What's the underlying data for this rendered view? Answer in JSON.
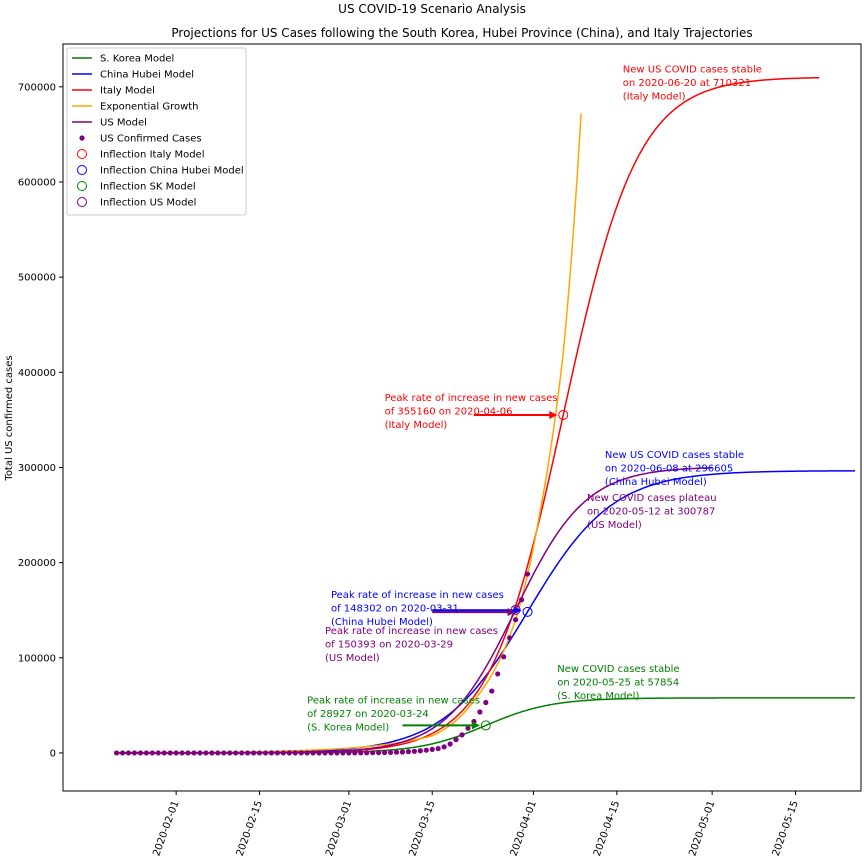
{
  "chart_data": {
    "type": "line",
    "title": "US COVID-19 Scenario Analysis",
    "subtitle": "Projections for US Cases following the South Korea, Hubei Province (China), and Italy Trajectories",
    "xlabel": "",
    "ylabel": "Total US confirmed cases",
    "xlim": [
      "2020-01-13",
      "2020-05-26"
    ],
    "ylim": [
      -40000,
      745000
    ],
    "x_ticks": [
      "2020-02-01",
      "2020-02-15",
      "2020-03-01",
      "2020-03-15",
      "2020-04-01",
      "2020-04-15",
      "2020-05-01",
      "2020-05-15"
    ],
    "y_ticks": [
      0,
      100000,
      200000,
      300000,
      400000,
      500000,
      600000,
      700000
    ],
    "grid": false,
    "legend_position": "top-left",
    "series": [
      {
        "name": "S. Korea Model",
        "kind": "logistic",
        "color": "#008000",
        "midpoint": "2020-03-24",
        "capacity": 57854,
        "rate": 0.18,
        "start": "2020-01-22",
        "end": "2020-05-25"
      },
      {
        "name": "China Hubei Model",
        "kind": "logistic",
        "color": "#0000ff",
        "midpoint": "2020-03-31",
        "capacity": 296605,
        "rate": 0.14,
        "start": "2020-01-22",
        "end": "2020-05-25"
      },
      {
        "name": "Italy Model",
        "kind": "logistic",
        "color": "#ff0000",
        "midpoint": "2020-04-06",
        "capacity": 710321,
        "rate": 0.16,
        "start": "2020-01-22",
        "end": "2020-05-19"
      },
      {
        "name": "Exponential Growth",
        "kind": "exponential",
        "color": "#ffa500",
        "start": "2020-01-22",
        "end": "2020-04-09",
        "points": [
          [
            "2020-01-22",
            0
          ],
          [
            "2020-03-01",
            5000
          ],
          [
            "2020-03-15",
            18000
          ],
          [
            "2020-03-22",
            55000
          ],
          [
            "2020-03-29",
            140000
          ],
          [
            "2020-04-02",
            250000
          ],
          [
            "2020-04-06",
            420000
          ],
          [
            "2020-04-09",
            672000
          ]
        ]
      },
      {
        "name": "US Model",
        "kind": "logistic",
        "color": "#800080",
        "midpoint": "2020-03-29",
        "capacity": 300787,
        "rate": 0.17,
        "start": "2020-01-22",
        "end": "2020-05-01"
      },
      {
        "name": "US Confirmed Cases",
        "kind": "scatter",
        "color": "#800080",
        "points": [
          [
            "2020-01-22",
            1
          ],
          [
            "2020-02-01",
            8
          ],
          [
            "2020-02-15",
            15
          ],
          [
            "2020-02-29",
            70
          ],
          [
            "2020-03-04",
            150
          ],
          [
            "2020-03-08",
            550
          ],
          [
            "2020-03-10",
            1000
          ],
          [
            "2020-03-12",
            1700
          ],
          [
            "2020-03-14",
            2900
          ],
          [
            "2020-03-16",
            4600
          ],
          [
            "2020-03-17",
            6400
          ],
          [
            "2020-03-18",
            9400
          ],
          [
            "2020-03-19",
            14000
          ],
          [
            "2020-03-20",
            19000
          ],
          [
            "2020-03-21",
            26000
          ],
          [
            "2020-03-22",
            33000
          ],
          [
            "2020-03-23",
            43000
          ],
          [
            "2020-03-24",
            53000
          ],
          [
            "2020-03-25",
            65000
          ],
          [
            "2020-03-26",
            83000
          ],
          [
            "2020-03-27",
            101000
          ],
          [
            "2020-03-28",
            121000
          ],
          [
            "2020-03-29",
            140000
          ],
          [
            "2020-03-30",
            161000
          ],
          [
            "2020-03-31",
            188000
          ]
        ]
      }
    ],
    "inflections": [
      {
        "name": "Inflection Italy Model",
        "color": "#ff0000",
        "x": "2020-04-06",
        "y": 355160
      },
      {
        "name": "Inflection China Hubei Model",
        "color": "#0000ff",
        "x": "2020-03-31",
        "y": 148302
      },
      {
        "name": "Inflection SK Model",
        "color": "#008000",
        "x": "2020-03-24",
        "y": 28927
      },
      {
        "name": "Inflection US Model",
        "color": "#800080",
        "x": "2020-03-29",
        "y": 150393
      }
    ],
    "annotations": [
      {
        "id": "italy-peak",
        "color": "#ff0000",
        "lines": [
          "Peak rate of increase in new cases",
          "of 355160 on 2020-04-06",
          "(Italy Model)"
        ],
        "x": "2020-03-07",
        "y": 370000,
        "arrow_from": [
          "2020-03-22",
          355160
        ],
        "arrow_to": [
          "2020-04-05",
          355160
        ]
      },
      {
        "id": "italy-stable",
        "color": "#ff0000",
        "lines": [
          "New US COVID cases stable",
          "on 2020-06-20 at 710321",
          "(Italy Model)"
        ],
        "x": "2020-04-16",
        "y": 715000
      },
      {
        "id": "hubei-stable",
        "color": "#0000ff",
        "lines": [
          "New US COVID cases stable",
          "on 2020-06-08 at 296605",
          "(China Hubei Model)"
        ],
        "x": "2020-04-13",
        "y": 310000
      },
      {
        "id": "us-plateau",
        "color": "#800080",
        "lines": [
          "New COVID cases plateau",
          "on 2020-05-12 at 300787",
          "(US Model)"
        ],
        "x": "2020-04-10",
        "y": 265000
      },
      {
        "id": "hubei-peak",
        "color": "#0000ff",
        "lines": [
          "Peak rate of increase in new cases",
          "of 148302 on 2020-03-31",
          "(China Hubei Model)"
        ],
        "x": "2020-02-27",
        "y": 163000,
        "arrow_from": [
          "2020-03-15",
          150000
        ],
        "arrow_to": [
          "2020-03-30",
          150000
        ]
      },
      {
        "id": "us-peak",
        "color": "#800080",
        "lines": [
          "Peak rate of increase in new cases",
          "of 150393 on 2020-03-29",
          "(US Model)"
        ],
        "x": "2020-02-26",
        "y": 125000,
        "arrow_from": [
          "2020-03-15",
          148000
        ],
        "arrow_to": [
          "2020-03-29",
          148000
        ]
      },
      {
        "id": "sk-peak",
        "color": "#008000",
        "lines": [
          "Peak rate of increase in new cases",
          "of 28927 on 2020-03-24",
          "(S. Korea Model)"
        ],
        "x": "2020-02-23",
        "y": 52000,
        "arrow_from": [
          "2020-03-10",
          28927
        ],
        "arrow_to": [
          "2020-03-23",
          28927
        ]
      },
      {
        "id": "sk-stable",
        "color": "#008000",
        "lines": [
          "New COVID cases stable",
          "on 2020-05-25 at 57854",
          "(S. Korea Model)"
        ],
        "x": "2020-04-05",
        "y": 85000
      }
    ]
  }
}
